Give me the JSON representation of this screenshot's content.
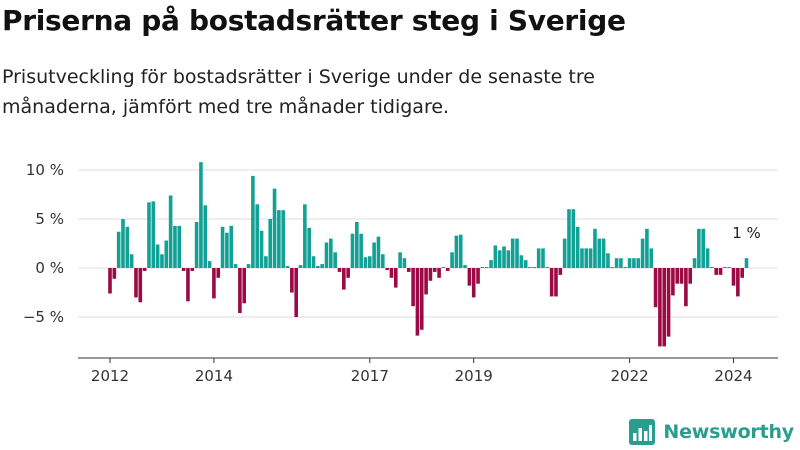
{
  "title": "Priserna på bostadsrätter steg i Sverige",
  "subtitle": "Prisutveckling för bostadsrätter i Sverige under de senaste tre månaderna, jämfört med tre månader tidigare.",
  "brand": {
    "name": "Newsworthy",
    "color": "#2a9d8f"
  },
  "colors": {
    "positive": "#12a195",
    "negative": "#9b0a45",
    "grid": "#dddddd",
    "axis": "#333333"
  },
  "chart_data": {
    "type": "bar",
    "title": "",
    "xlabel": "",
    "ylabel": "",
    "ylim": [
      -9,
      11
    ],
    "y_ticks": [
      -5,
      0,
      5,
      10
    ],
    "y_tick_labels": [
      "−5 %",
      "0 %",
      "5 %",
      "10 %"
    ],
    "x_ticks": [
      "2012",
      "2014",
      "2017",
      "2019",
      "2022",
      "2024"
    ],
    "grid": true,
    "annotation": "1 %",
    "first_period": "2012-01",
    "values": [
      -2.6,
      -1.1,
      3.7,
      5.0,
      4.2,
      1.4,
      -3.0,
      -3.5,
      -0.3,
      6.7,
      6.8,
      2.4,
      1.4,
      2.8,
      7.4,
      4.3,
      4.3,
      -0.3,
      -3.4,
      -0.3,
      4.7,
      10.8,
      6.4,
      0.7,
      -3.1,
      -1.0,
      4.2,
      3.6,
      4.3,
      0.4,
      -4.6,
      -3.6,
      0.4,
      9.4,
      6.5,
      3.8,
      1.2,
      5.0,
      8.1,
      5.9,
      5.9,
      0.2,
      -2.5,
      -5.0,
      0.3,
      6.5,
      4.1,
      1.2,
      0.2,
      0.4,
      2.6,
      3.0,
      1.6,
      -0.4,
      -2.2,
      -1.0,
      3.5,
      4.7,
      3.5,
      1.1,
      1.2,
      2.6,
      3.2,
      1.4,
      -0.2,
      -1.0,
      -2.0,
      1.6,
      1.0,
      -0.4,
      -3.9,
      -6.9,
      -6.3,
      -2.7,
      -1.3,
      -0.4,
      -1.0,
      0.1,
      -0.3,
      1.6,
      3.3,
      3.4,
      0.3,
      -1.8,
      -3.0,
      -1.6,
      0.1,
      0.1,
      0.8,
      2.3,
      1.8,
      2.2,
      1.8,
      3.0,
      3.0,
      1.3,
      0.8,
      0.1,
      0.1,
      2.0,
      2.0,
      0.1,
      -2.9,
      -2.9,
      -0.7,
      3.0,
      6.0,
      6.0,
      4.2,
      2.0,
      2.0,
      2.0,
      4.0,
      3.0,
      3.0,
      1.5,
      0.1,
      1.0,
      1.0,
      0.1,
      1.0,
      1.0,
      1.0,
      3.0,
      4.0,
      2.0,
      -4.0,
      -8.0,
      -8.0,
      -7.0,
      -2.8,
      -1.6,
      -1.6,
      -3.9,
      -1.6,
      1.0,
      4.0,
      4.0,
      2.0,
      0.1,
      -0.7,
      -0.7,
      0.1,
      0.1,
      -1.8,
      -2.9,
      -1.0,
      1.0
    ]
  }
}
